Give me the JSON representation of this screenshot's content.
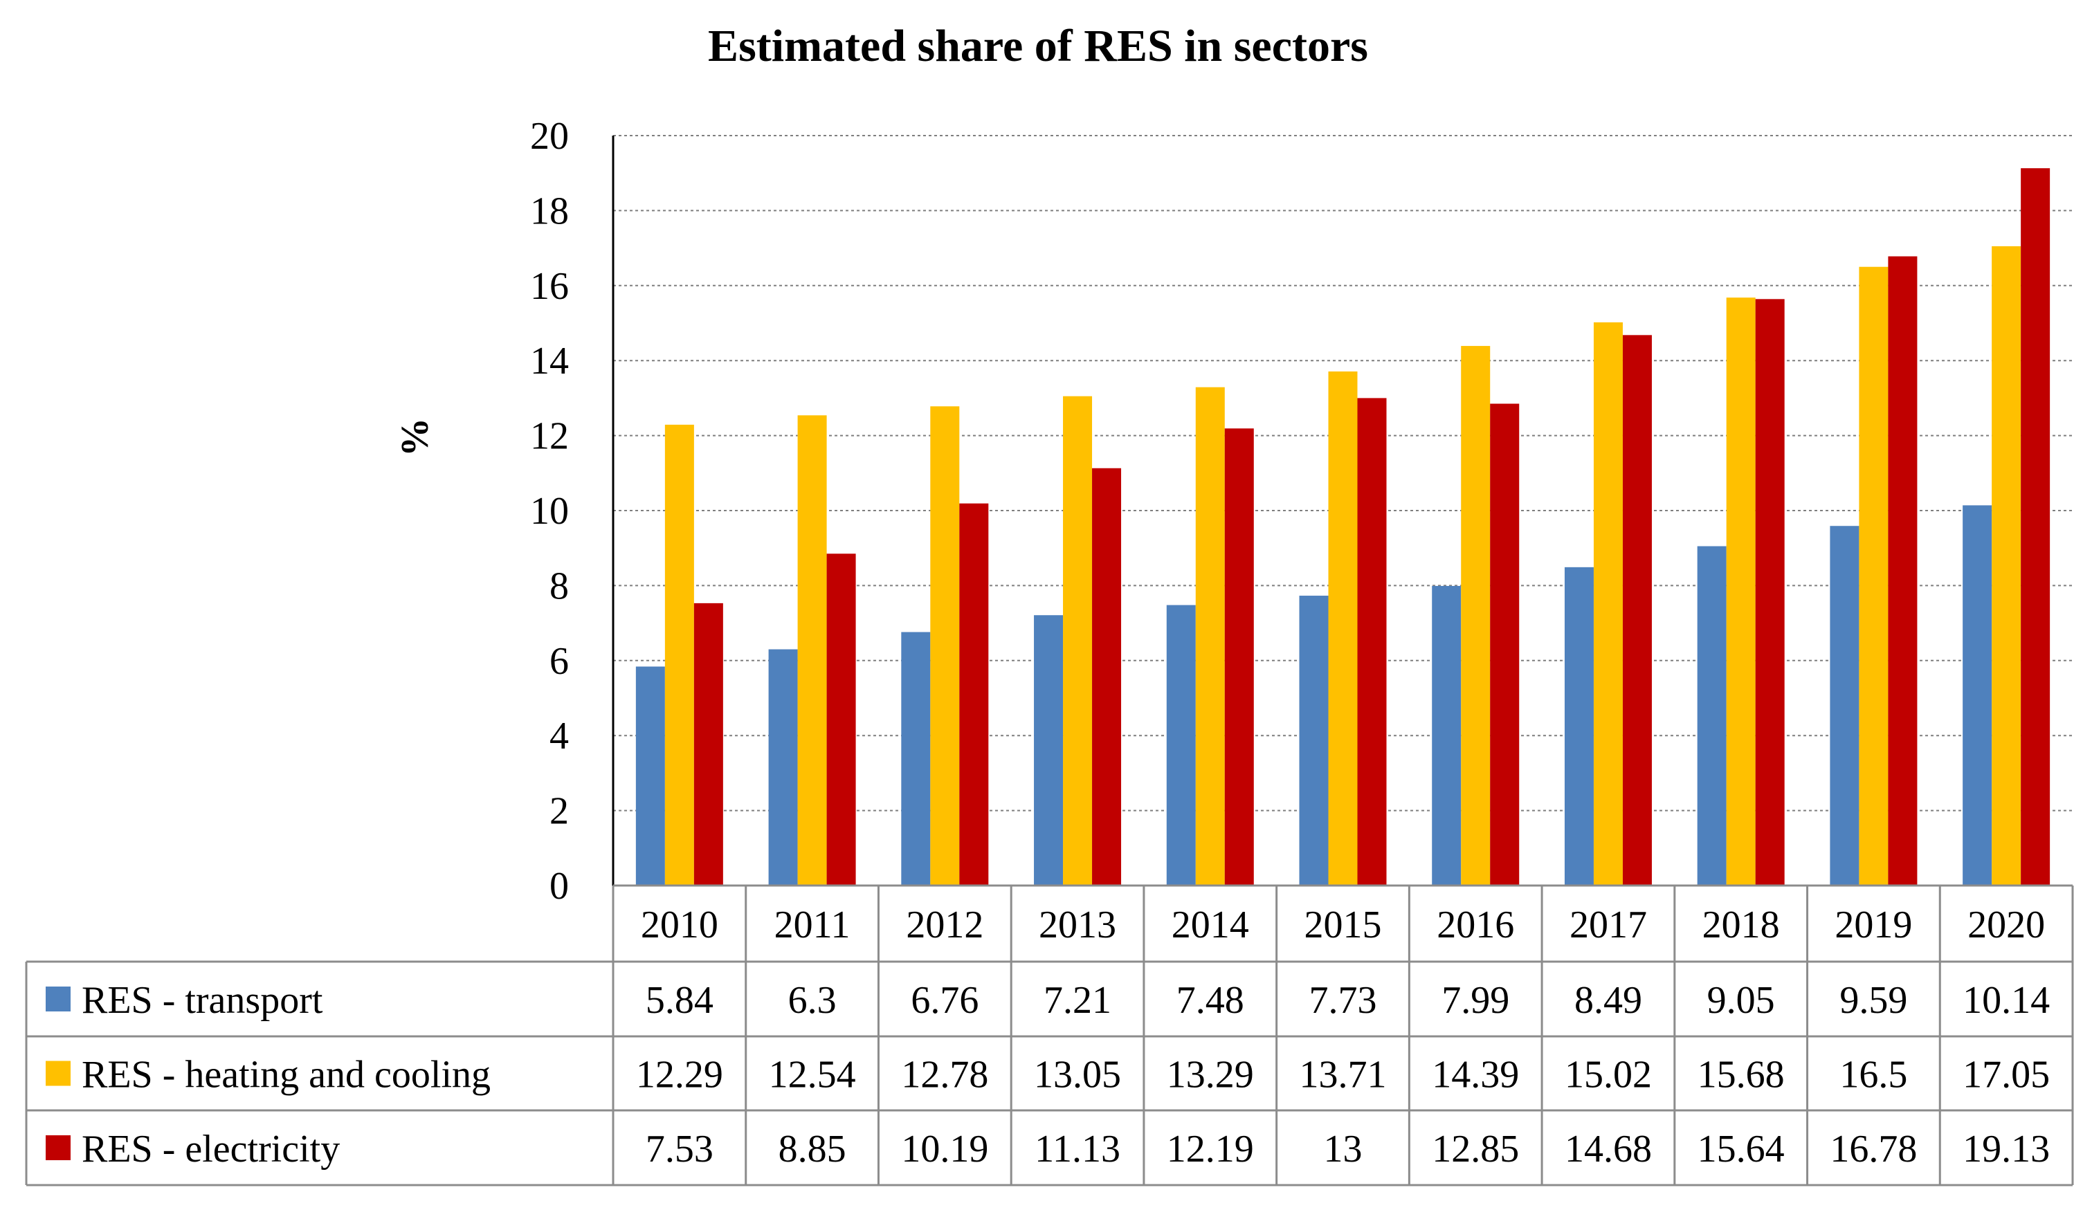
{
  "chart_data": {
    "type": "bar",
    "title": "Estimated share of RES in sectors",
    "ylabel": "%",
    "xlabel": "",
    "ylim": [
      0,
      20
    ],
    "yticks": [
      0,
      2,
      4,
      6,
      8,
      10,
      12,
      14,
      16,
      18,
      20
    ],
    "grid": true,
    "legend": "data-table-below",
    "categories": [
      "2010",
      "2011",
      "2012",
      "2013",
      "2014",
      "2015",
      "2016",
      "2017",
      "2018",
      "2019",
      "2020"
    ],
    "series": [
      {
        "name": "RES - transport",
        "color": "#4F81BD",
        "values": [
          5.84,
          6.3,
          6.76,
          7.21,
          7.48,
          7.73,
          7.99,
          8.49,
          9.05,
          9.59,
          10.14
        ]
      },
      {
        "name": "RES - heating and cooling",
        "color": "#FFC000",
        "values": [
          12.29,
          12.54,
          12.78,
          13.05,
          13.29,
          13.71,
          14.39,
          15.02,
          15.68,
          16.5,
          17.05
        ]
      },
      {
        "name": "RES - electricity",
        "color": "#C00000",
        "values": [
          7.53,
          8.85,
          10.19,
          11.13,
          12.19,
          13,
          12.85,
          14.68,
          15.64,
          16.78,
          19.13
        ]
      }
    ]
  }
}
